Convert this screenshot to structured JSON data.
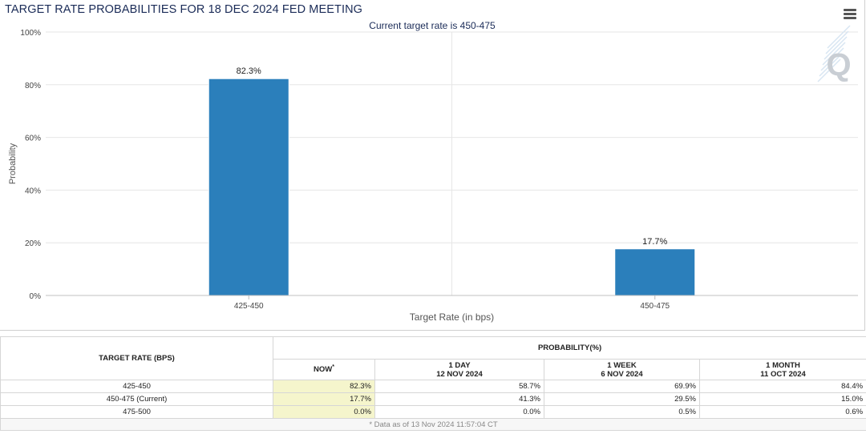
{
  "chart_data": {
    "type": "bar",
    "title": "TARGET RATE PROBABILITIES FOR 18 DEC 2024 FED MEETING",
    "subtitle": "Current target rate is 450-475",
    "categories": [
      "425-450",
      "450-475"
    ],
    "values": [
      82.3,
      17.7
    ],
    "value_labels": [
      "82.3%",
      "17.7%"
    ],
    "xlabel": "Target Rate (in bps)",
    "ylabel": "Probability",
    "ylim": [
      0,
      100
    ],
    "yticks": [
      0,
      20,
      40,
      60,
      80,
      100
    ],
    "ytick_labels": [
      "0%",
      "20%",
      "40%",
      "60%",
      "80%",
      "100%"
    ],
    "grid": true,
    "bar_color": "#2b7fbb",
    "watermark": "Q"
  },
  "table": {
    "target_rate_header": "TARGET RATE (BPS)",
    "probability_header": "PROBABILITY(%)",
    "columns": [
      {
        "label": "NOW",
        "sup": "*",
        "date": ""
      },
      {
        "label": "1 DAY",
        "sup": "",
        "date": "12 NOV 2024"
      },
      {
        "label": "1 WEEK",
        "sup": "",
        "date": "6 NOV 2024"
      },
      {
        "label": "1 MONTH",
        "sup": "",
        "date": "11 OCT 2024"
      }
    ],
    "rows": [
      {
        "rate": "425-450",
        "values": [
          "82.3%",
          "58.7%",
          "69.9%",
          "84.4%"
        ]
      },
      {
        "rate": "450-475 (Current)",
        "values": [
          "17.7%",
          "41.3%",
          "29.5%",
          "15.0%"
        ]
      },
      {
        "rate": "475-500",
        "values": [
          "0.0%",
          "0.0%",
          "0.5%",
          "0.6%"
        ]
      }
    ],
    "footnote": "* Data as of 13 Nov 2024 11:57:04 CT"
  }
}
